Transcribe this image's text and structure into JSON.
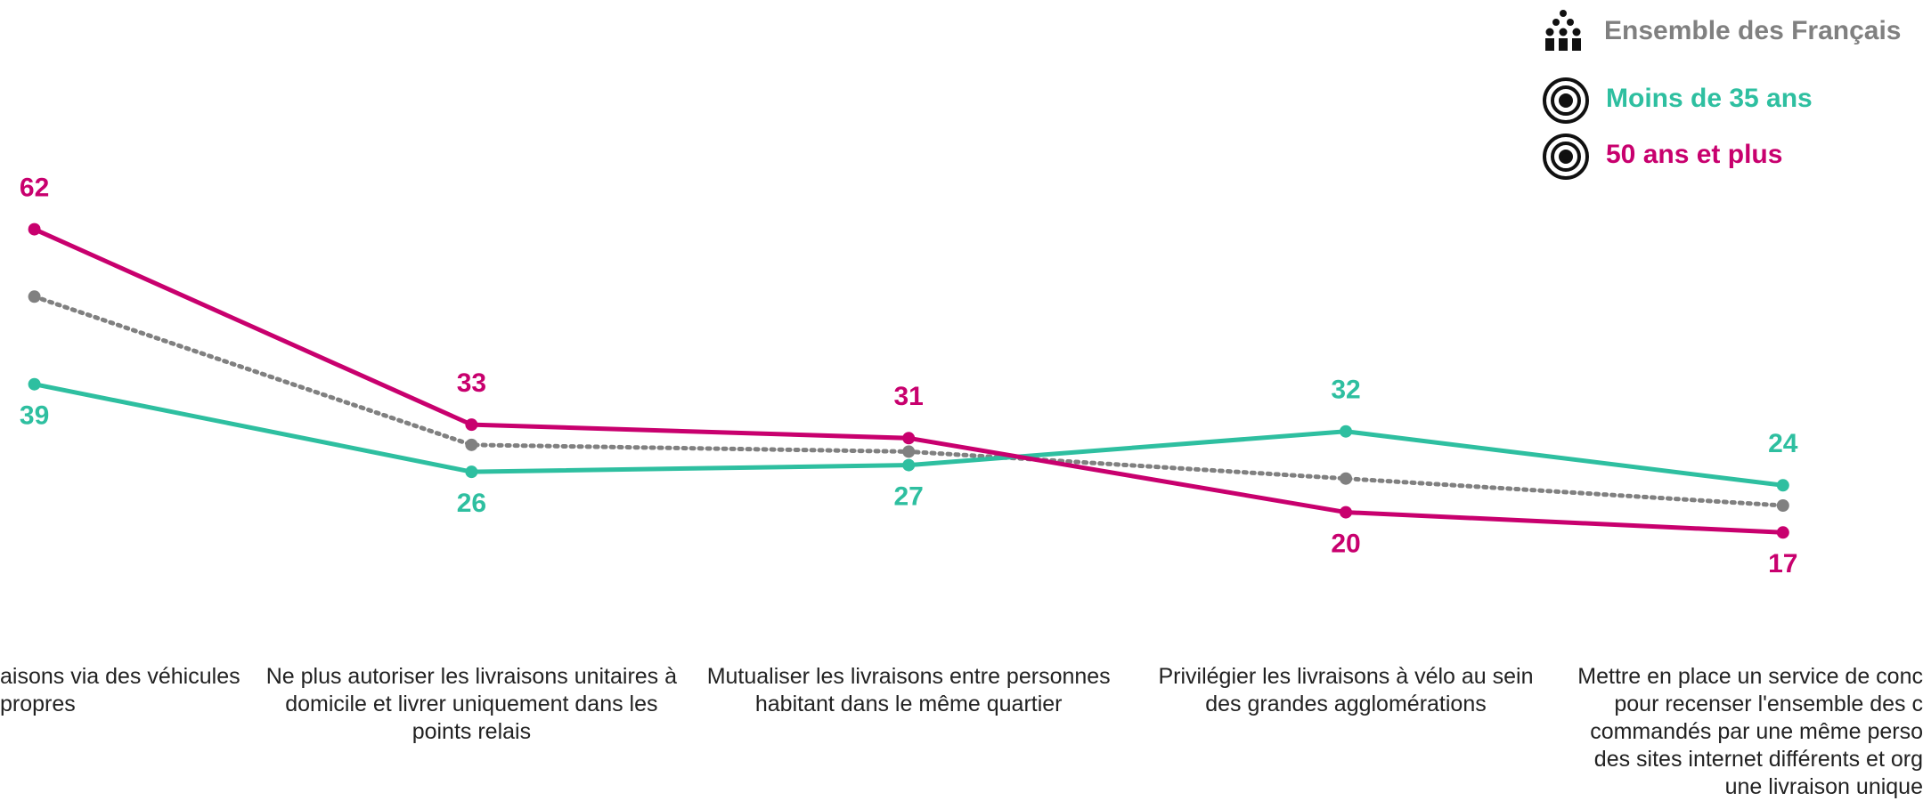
{
  "chart_data": {
    "type": "line",
    "categories": [
      "aisons via des véhicules\npropres",
      "Ne plus autoriser les livraisons unitaires à\ndomicile et livrer uniquement dans les\npoints relais",
      "Mutualiser les livraisons entre personnes\nhabitant dans le même quartier",
      "Privilégier les livraisons à vélo au sein\ndes grandes agglomérations",
      "Mettre en place un service de conc\npour recenser l'ensemble des c\ncommandés par une même perso\ndes sites internet différents et org\nune livraison unique"
    ],
    "series": [
      {
        "name": "Ensemble des Français",
        "color": "#808080",
        "dotted": true,
        "values": [
          52,
          30,
          29,
          25,
          21
        ]
      },
      {
        "name": "Moins de 35 ans",
        "color": "#2ebfa0",
        "values": [
          39,
          26,
          27,
          32,
          24
        ]
      },
      {
        "name": "50 ans et plus",
        "color": "#c8006e",
        "values": [
          62,
          33,
          31,
          20,
          17
        ]
      }
    ],
    "ylim": [
      0,
      70
    ],
    "grid": false
  }
}
